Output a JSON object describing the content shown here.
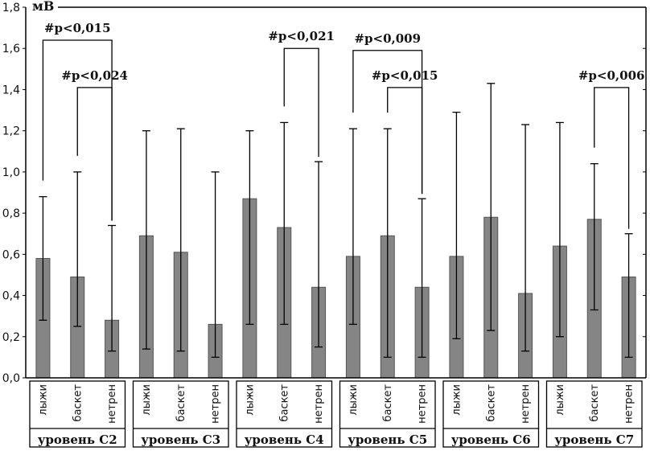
{
  "chart_data": {
    "type": "bar",
    "unit_label": "мВ",
    "ylim": [
      0,
      1.8
    ],
    "y_ticks": [
      "0,0",
      "0,2",
      "0,4",
      "0,6",
      "0,8",
      "1,0",
      "1,2",
      "1,4",
      "1,6",
      "1,8"
    ],
    "colors": {
      "bar": "#858585",
      "axis": "#000000",
      "text": "#111111"
    },
    "categories": [
      "лыжи",
      "баскет",
      "нетрен"
    ],
    "groups": [
      {
        "label": "уровень С2",
        "bars": [
          {
            "cat": "лыжи",
            "mean": 0.58,
            "low": 0.28,
            "high": 0.88
          },
          {
            "cat": "баскет",
            "mean": 0.49,
            "low": 0.25,
            "high": 1.0
          },
          {
            "cat": "нетрен",
            "mean": 0.28,
            "low": 0.13,
            "high": 0.74
          }
        ]
      },
      {
        "label": "уровень С3",
        "bars": [
          {
            "cat": "лыжи",
            "mean": 0.69,
            "low": 0.14,
            "high": 1.2
          },
          {
            "cat": "баскет",
            "mean": 0.61,
            "low": 0.13,
            "high": 1.21
          },
          {
            "cat": "нетрен",
            "mean": 0.26,
            "low": 0.1,
            "high": 1.0
          }
        ]
      },
      {
        "label": "уровень С4",
        "bars": [
          {
            "cat": "лыжи",
            "mean": 0.87,
            "low": 0.26,
            "high": 1.2
          },
          {
            "cat": "баскет",
            "mean": 0.73,
            "low": 0.26,
            "high": 1.24
          },
          {
            "cat": "нетрен",
            "mean": 0.44,
            "low": 0.15,
            "high": 1.05
          }
        ]
      },
      {
        "label": "уровень С5",
        "bars": [
          {
            "cat": "лыжи",
            "mean": 0.59,
            "low": 0.26,
            "high": 1.21
          },
          {
            "cat": "баскет",
            "mean": 0.69,
            "low": 0.1,
            "high": 1.21
          },
          {
            "cat": "нетрен",
            "mean": 0.44,
            "low": 0.1,
            "high": 0.87
          }
        ]
      },
      {
        "label": "уровень С6",
        "bars": [
          {
            "cat": "лыжи",
            "mean": 0.59,
            "low": 0.19,
            "high": 1.29
          },
          {
            "cat": "баскет",
            "mean": 0.78,
            "low": 0.23,
            "high": 1.43
          },
          {
            "cat": "нетрен",
            "mean": 0.41,
            "low": 0.13,
            "high": 1.23
          }
        ]
      },
      {
        "label": "уровень С7",
        "bars": [
          {
            "cat": "лыжи",
            "mean": 0.64,
            "low": 0.2,
            "high": 1.24
          },
          {
            "cat": "баскет",
            "mean": 0.77,
            "low": 0.33,
            "high": 1.04
          },
          {
            "cat": "нетрен",
            "mean": 0.49,
            "low": 0.1,
            "high": 0.7
          }
        ]
      }
    ],
    "annotations": [
      {
        "text": "#p<0,015",
        "group": 0,
        "from": 0,
        "to": 2,
        "y": 1.64
      },
      {
        "text": "#p<0,024",
        "group": 0,
        "from": 1,
        "to": 2,
        "y": 1.41
      },
      {
        "text": "#p<0,021",
        "group": 2,
        "from": 1,
        "to": 2,
        "y": 1.6
      },
      {
        "text": "#p<0,009",
        "group": 3,
        "from": 0,
        "to": 2,
        "y": 1.59
      },
      {
        "text": "#p<0,015",
        "group": 3,
        "from": 1,
        "to": 2,
        "y": 1.41
      },
      {
        "text": "#p<0,006",
        "group": 5,
        "from": 1,
        "to": 2,
        "y": 1.41
      }
    ]
  }
}
